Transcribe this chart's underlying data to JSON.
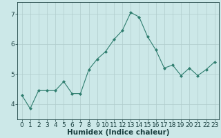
{
  "x": [
    0,
    1,
    2,
    3,
    4,
    5,
    6,
    7,
    8,
    9,
    10,
    11,
    12,
    13,
    14,
    15,
    16,
    17,
    18,
    19,
    20,
    21,
    22,
    23
  ],
  "y": [
    4.3,
    3.85,
    4.45,
    4.45,
    4.45,
    4.75,
    4.35,
    4.35,
    5.15,
    5.5,
    5.75,
    6.15,
    6.45,
    7.05,
    6.9,
    6.25,
    5.8,
    5.2,
    5.3,
    4.95,
    5.2,
    4.95,
    5.15,
    5.4
  ],
  "line_color": "#2e7d6e",
  "marker": "D",
  "marker_size": 2.0,
  "bg_color": "#cce8e8",
  "grid_color": "#b0cccc",
  "xlabel": "Humidex (Indice chaleur)",
  "ylim": [
    3.5,
    7.4
  ],
  "xlim": [
    -0.5,
    23.5
  ],
  "yticks": [
    4,
    5,
    6,
    7
  ],
  "xticks": [
    0,
    1,
    2,
    3,
    4,
    5,
    6,
    7,
    8,
    9,
    10,
    11,
    12,
    13,
    14,
    15,
    16,
    17,
    18,
    19,
    20,
    21,
    22,
    23
  ],
  "tick_label_fontsize": 6.5,
  "xlabel_fontsize": 7.5,
  "axis_color": "#1a4040",
  "tick_color": "#1a4040"
}
